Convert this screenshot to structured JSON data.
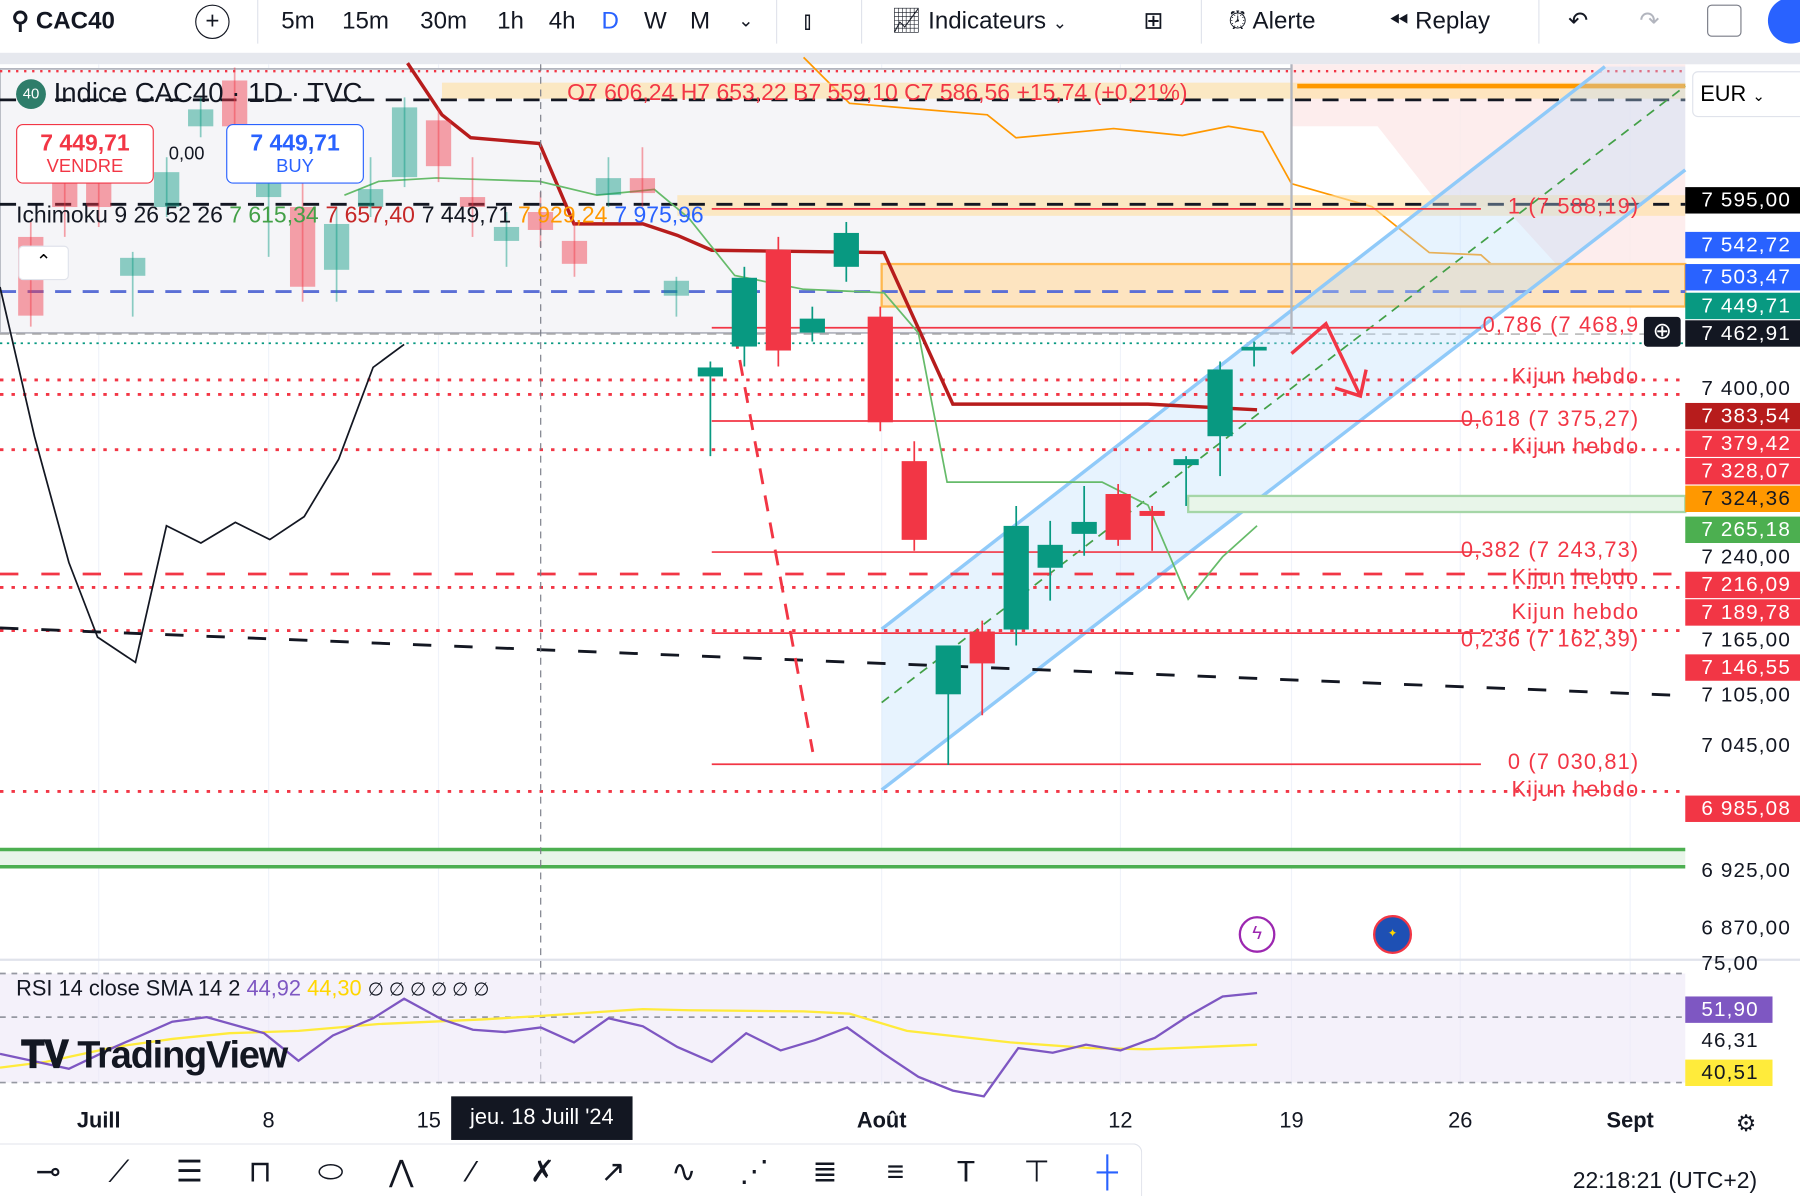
{
  "toolbar": {
    "symbol": "CAC40",
    "intervals": [
      "5m",
      "15m",
      "30m",
      "1h",
      "4h",
      "D",
      "W",
      "M"
    ],
    "active_interval": "D",
    "indicators": "Indicateurs",
    "alert": "Alerte",
    "replay": "Replay"
  },
  "legend": {
    "badge": "40",
    "title": "Indice CAC40 · 1D · TVC",
    "ohlc": "O7 606,24 H7 653,22 B7 559,10 C7 586,56 +15,74 (+0,21%)",
    "sell_price": "7 449,71",
    "sell_label": "VENDRE",
    "spread": "0,00",
    "buy_price": "7 449,71",
    "buy_label": "BUY",
    "ichimoku_name": "Ichimoku 9 26 52 26",
    "ichimoku_values": [
      {
        "v": "7 615,34",
        "color": "#43a047"
      },
      {
        "v": "7 657,40",
        "color": "#c62828"
      },
      {
        "v": "7 449,71",
        "color": "#131722"
      },
      {
        "v": "7 929,24",
        "color": "#ff9800"
      },
      {
        "v": "7 975,96",
        "color": "#2962ff"
      }
    ],
    "currency": "EUR"
  },
  "fib": [
    {
      "t": "1 (7 588,19)",
      "p": 7588.19
    },
    {
      "t": "0,786 (7 468,9",
      "p": 7468.9
    },
    {
      "t": "0,618 (7 375,27)",
      "p": 7375.27
    },
    {
      "t": "0,382 (7 243,73)",
      "p": 7243.73
    },
    {
      "t": "0,236 (7 162,39)",
      "p": 7162.39
    },
    {
      "t": "0 (7 030,81)",
      "p": 7030.81
    }
  ],
  "kijun": {
    "label": "Kijun hebdo",
    "levels": [
      7383.54,
      7328.07,
      7189.78,
      7146.55,
      6985.08
    ]
  },
  "price_axis": [
    {
      "t": "7 595,00",
      "bg": "#000000"
    },
    {
      "t": "7 542,72",
      "bg": "#2962ff"
    },
    {
      "t": "7 503,47",
      "bg": "#2962ff"
    },
    {
      "t": "7 449,71",
      "bg": "#089981"
    },
    {
      "t": "7 462,91",
      "bg": "#131722"
    },
    {
      "t": "7 400,00",
      "bg": ""
    },
    {
      "t": "7 383,54",
      "bg": "#b71c1c"
    },
    {
      "t": "7 379,42",
      "bg": "#f23645"
    },
    {
      "t": "7 328,07",
      "bg": "#f23645"
    },
    {
      "t": "7 324,36",
      "bg": "#ff9800"
    },
    {
      "t": "7 265,18",
      "bg": "#4caf50"
    },
    {
      "t": "7 240,00",
      "bg": ""
    },
    {
      "t": "7 216,09",
      "bg": "#f23645"
    },
    {
      "t": "7 189,78",
      "bg": "#f23645"
    },
    {
      "t": "7 165,00",
      "bg": ""
    },
    {
      "t": "7 146,55",
      "bg": "#f23645"
    },
    {
      "t": "7 105,00",
      "bg": ""
    },
    {
      "t": "7 045,00",
      "bg": ""
    },
    {
      "t": "6 985,08",
      "bg": "#f23645"
    },
    {
      "t": "6 925,00",
      "bg": ""
    },
    {
      "t": "6 870,00",
      "bg": ""
    }
  ],
  "rsi": {
    "title": "RSI 14 close SMA 14 2",
    "rsi": "44,92",
    "sma": "44,30",
    "empty": "∅ ∅ ∅ ∅ ∅ ∅",
    "axis": [
      "75,00",
      "51,90",
      "46,31",
      "40,51"
    ],
    "colors": {
      "rsi": "#7e57c2",
      "sma": "#ffeb3b"
    }
  },
  "time_axis": [
    "Juill",
    "8",
    "15",
    "Août",
    "12",
    "19",
    "26",
    "Sept"
  ],
  "crosshair_date": "jeu. 18 Juill '24",
  "clock": "22:18:21 (UTC+2)",
  "watermark": "TradingView",
  "chart_data": {
    "type": "candlestick",
    "symbol": "CAC40",
    "interval": "1D",
    "up_color": "#089981",
    "down_color": "#f23645",
    "candles": [
      [
        "2024-06-27",
        7560,
        7575,
        7470,
        7481
      ],
      [
        "2024-06-28",
        7640,
        7660,
        7560,
        7590
      ],
      [
        "2024-07-01",
        7620,
        7660,
        7570,
        7590
      ],
      [
        "2024-07-02",
        7521,
        7545,
        7480,
        7539
      ],
      [
        "2024-07-03",
        7590,
        7640,
        7580,
        7625
      ],
      [
        "2024-07-04",
        7671,
        7700,
        7660,
        7688
      ],
      [
        "2024-07-05",
        7717,
        7730,
        7660,
        7671
      ],
      [
        "2024-07-08",
        7600,
        7660,
        7540,
        7630
      ],
      [
        "2024-07-09",
        7590,
        7620,
        7495,
        7510
      ],
      [
        "2024-07-10",
        7527,
        7590,
        7495,
        7573
      ],
      [
        "2024-07-11",
        7590,
        7640,
        7580,
        7608
      ],
      [
        "2024-07-12",
        7620,
        7700,
        7610,
        7690
      ],
      [
        "2024-07-15",
        7677,
        7690,
        7615,
        7631
      ],
      [
        "2024-07-16",
        7600,
        7640,
        7560,
        7590
      ],
      [
        "2024-07-17",
        7556,
        7585,
        7530,
        7570
      ],
      [
        "2024-07-18",
        7585,
        7605,
        7550,
        7567
      ],
      [
        "2024-07-19",
        7556,
        7575,
        7520,
        7533
      ],
      [
        "2024-07-22",
        7602,
        7640,
        7590,
        7619
      ],
      [
        "2024-07-23",
        7619,
        7650,
        7590,
        7604
      ],
      [
        "2024-07-24",
        7501,
        7520,
        7480,
        7516
      ],
      [
        "2024-07-25",
        7420,
        7435,
        7340,
        7429
      ],
      [
        "2024-07-26",
        7450,
        7530,
        7430,
        7519
      ],
      [
        "2024-07-29",
        7547,
        7560,
        7430,
        7446
      ],
      [
        "2024-07-30",
        7464,
        7490,
        7455,
        7478
      ],
      [
        "2024-07-31",
        7530,
        7575,
        7515,
        7564
      ],
      [
        "2024-08-01",
        7480,
        7490,
        7365,
        7374
      ],
      [
        "2024-08-02",
        7335,
        7355,
        7245,
        7256
      ],
      [
        "2024-08-05",
        7101,
        7150,
        7030,
        7150
      ],
      [
        "2024-08-06",
        7164,
        7175,
        7080,
        7132
      ],
      [
        "2024-08-07",
        7166,
        7290,
        7150,
        7270
      ],
      [
        "2024-08-08",
        7228,
        7275,
        7195,
        7251
      ],
      [
        "2024-08-09",
        7262,
        7310,
        7240,
        7274
      ],
      [
        "2024-08-12",
        7302,
        7312,
        7250,
        7256
      ],
      [
        "2024-08-13",
        7285,
        7290,
        7245,
        7280
      ],
      [
        "2024-08-14",
        7331,
        7340,
        7290,
        7337
      ],
      [
        "2024-08-15",
        7360,
        7435,
        7320,
        7427
      ],
      [
        "2024-08-16",
        7446,
        7455,
        7430,
        7449.71
      ]
    ],
    "ylim": [
      6840,
      7720
    ]
  }
}
